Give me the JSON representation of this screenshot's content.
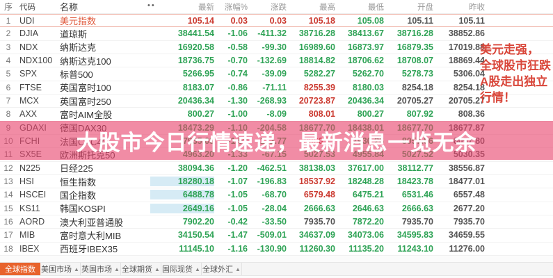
{
  "table": {
    "columns": {
      "seq": "序",
      "code": "代码",
      "name": "名称",
      "last": "最新",
      "pct": "涨幅%",
      "chg": "涨跌",
      "high": "最高",
      "low": "最低",
      "open": "开盘",
      "prev": "昨收"
    },
    "header_icon": "••",
    "rows": [
      {
        "seq": "1",
        "code": "UDI",
        "name": "美元指数",
        "last": "105.14",
        "pct": "0.03",
        "chg": "0.03",
        "high": "105.18",
        "low": "105.08",
        "open": "105.11",
        "prev": "105.11",
        "colors": "rrrrgnn",
        "name_hot": true,
        "selected": true,
        "hl": false
      },
      {
        "seq": "2",
        "code": "DJIA",
        "name": "道琼斯",
        "last": "38441.54",
        "pct": "-1.06",
        "chg": "-411.32",
        "high": "38716.28",
        "low": "38413.67",
        "open": "38716.28",
        "prev": "38852.86",
        "colors": "ggggggn",
        "name_hot": false,
        "selected": false,
        "hl": false
      },
      {
        "seq": "3",
        "code": "NDX",
        "name": "纳斯达克",
        "last": "16920.58",
        "pct": "-0.58",
        "chg": "-99.30",
        "high": "16989.60",
        "low": "16873.97",
        "open": "16879.35",
        "prev": "17019.88",
        "colors": "ggggggn",
        "name_hot": false,
        "selected": false,
        "hl": false
      },
      {
        "seq": "4",
        "code": "NDX100",
        "name": "纳斯达克100",
        "last": "18736.75",
        "pct": "-0.70",
        "chg": "-132.69",
        "high": "18814.82",
        "low": "18706.62",
        "open": "18708.07",
        "prev": "18869.44",
        "colors": "ggggggn",
        "name_hot": false,
        "selected": false,
        "hl": false
      },
      {
        "seq": "5",
        "code": "SPX",
        "name": "标普500",
        "last": "5266.95",
        "pct": "-0.74",
        "chg": "-39.09",
        "high": "5282.27",
        "low": "5262.70",
        "open": "5278.73",
        "prev": "5306.04",
        "colors": "ggggggn",
        "name_hot": false,
        "selected": false,
        "hl": false
      },
      {
        "seq": "6",
        "code": "FTSE",
        "name": "英国富时100",
        "last": "8183.07",
        "pct": "-0.86",
        "chg": "-71.11",
        "high": "8255.39",
        "low": "8180.03",
        "open": "8254.18",
        "prev": "8254.18",
        "colors": "gggrgnn",
        "name_hot": false,
        "selected": false,
        "hl": false
      },
      {
        "seq": "7",
        "code": "MCX",
        "name": "英国富时250",
        "last": "20436.34",
        "pct": "-1.30",
        "chg": "-268.93",
        "high": "20723.87",
        "low": "20436.34",
        "open": "20705.27",
        "prev": "20705.27",
        "colors": "gggrgnn",
        "name_hot": false,
        "selected": false,
        "hl": false
      },
      {
        "seq": "8",
        "code": "AXX",
        "name": "富时AIM全股",
        "last": "800.27",
        "pct": "-1.00",
        "chg": "-8.09",
        "high": "808.01",
        "low": "800.27",
        "open": "807.92",
        "prev": "808.36",
        "colors": "gggrggn",
        "name_hot": false,
        "selected": false,
        "hl": false
      },
      {
        "seq": "9",
        "code": "GDAXI",
        "name": "德国DAX30",
        "last": "18473.29",
        "pct": "-1.10",
        "chg": "-204.58",
        "high": "18677.70",
        "low": "18438.01",
        "open": "18677.70",
        "prev": "18677.87",
        "colors": "ggggggn",
        "name_hot": false,
        "selected": false,
        "hl": false
      },
      {
        "seq": "10",
        "code": "FCHI",
        "name": "法国CAC40",
        "last": "7935.03",
        "pct": "-1.52",
        "chg": "-122.77",
        "high": "8060.71",
        "low": "7930.26",
        "open": "8057.56",
        "prev": "8057.80",
        "colors": "gggrggn",
        "name_hot": false,
        "selected": false,
        "hl": false
      },
      {
        "seq": "11",
        "code": "SX5E",
        "name": "欧洲斯托克50",
        "last": "4963.20",
        "pct": "-1.33",
        "chg": "-67.15",
        "high": "5027.53",
        "low": "4955.84",
        "open": "5027.52",
        "prev": "5030.35",
        "colors": "ggggggn",
        "name_hot": false,
        "selected": false,
        "hl": false
      },
      {
        "seq": "12",
        "code": "N225",
        "name": "日经225",
        "last": "38094.36",
        "pct": "-1.20",
        "chg": "-462.51",
        "high": "38138.03",
        "low": "37617.00",
        "open": "38112.77",
        "prev": "38556.87",
        "colors": "ggggggn",
        "name_hot": false,
        "selected": false,
        "hl": false
      },
      {
        "seq": "13",
        "code": "HSI",
        "name": "恒生指数",
        "last": "18280.18",
        "pct": "-1.07",
        "chg": "-196.83",
        "high": "18537.92",
        "low": "18248.28",
        "open": "18423.78",
        "prev": "18477.01",
        "colors": "gggrggn",
        "name_hot": false,
        "selected": false,
        "hl": true
      },
      {
        "seq": "14",
        "code": "HSCEI",
        "name": "国企指数",
        "last": "6488.78",
        "pct": "-1.05",
        "chg": "-68.70",
        "high": "6579.48",
        "low": "6475.21",
        "open": "6531.46",
        "prev": "6557.48",
        "colors": "gggrggn",
        "name_hot": false,
        "selected": false,
        "hl": true
      },
      {
        "seq": "15",
        "code": "KS11",
        "name": "韩国KOSPI",
        "last": "2649.16",
        "pct": "-1.05",
        "chg": "-28.04",
        "high": "2666.63",
        "low": "2646.63",
        "open": "2666.63",
        "prev": "2677.20",
        "colors": "ggggggn",
        "name_hot": false,
        "selected": false,
        "hl": true
      },
      {
        "seq": "16",
        "code": "AORD",
        "name": "澳大利亚普通股",
        "last": "7902.20",
        "pct": "-0.42",
        "chg": "-33.50",
        "high": "7935.70",
        "low": "7872.20",
        "open": "7935.70",
        "prev": "7935.70",
        "colors": "gggngnn",
        "name_hot": false,
        "selected": false,
        "hl": false
      },
      {
        "seq": "17",
        "code": "MIB",
        "name": "富时意大利MIB",
        "last": "34150.54",
        "pct": "-1.47",
        "chg": "-509.01",
        "high": "34637.09",
        "low": "34073.06",
        "open": "34595.83",
        "prev": "34659.55",
        "colors": "ggggggn",
        "name_hot": false,
        "selected": false,
        "hl": false
      },
      {
        "seq": "18",
        "code": "IBEX",
        "name": "西班牙IBEX35",
        "last": "11145.10",
        "pct": "-1.16",
        "chg": "-130.90",
        "high": "11260.30",
        "low": "11135.20",
        "open": "11243.10",
        "prev": "11276.00",
        "colors": "ggggggn",
        "name_hot": false,
        "selected": false,
        "hl": false
      }
    ]
  },
  "banner": {
    "text": "大股市今日行情速递，最新消息一览无余"
  },
  "side_note": {
    "lines": [
      "美元走强，",
      "全球股市狂跌",
      "A股走出独立",
      "行情！"
    ]
  },
  "footer": {
    "tabs": [
      {
        "label": "全球指数",
        "active": true,
        "arrow": ""
      },
      {
        "label": "美国市场",
        "active": false,
        "arrow": "▲"
      },
      {
        "label": "英国市场",
        "active": false,
        "arrow": "▲"
      },
      {
        "label": "全球期货",
        "active": false,
        "arrow": "▲"
      },
      {
        "label": "国际现货",
        "active": false,
        "arrow": "▲"
      },
      {
        "label": "全球外汇",
        "active": false,
        "arrow": "▲"
      }
    ]
  },
  "colors": {
    "up_red": "#cb3a30",
    "down_green": "#2fa356",
    "neutral": "#555555",
    "banner_pink": "rgba(232,70,110,0.62)",
    "tab_orange": "#e8632c",
    "highlight_blue": "#d6ebf5",
    "note_red": "#d9463a"
  }
}
